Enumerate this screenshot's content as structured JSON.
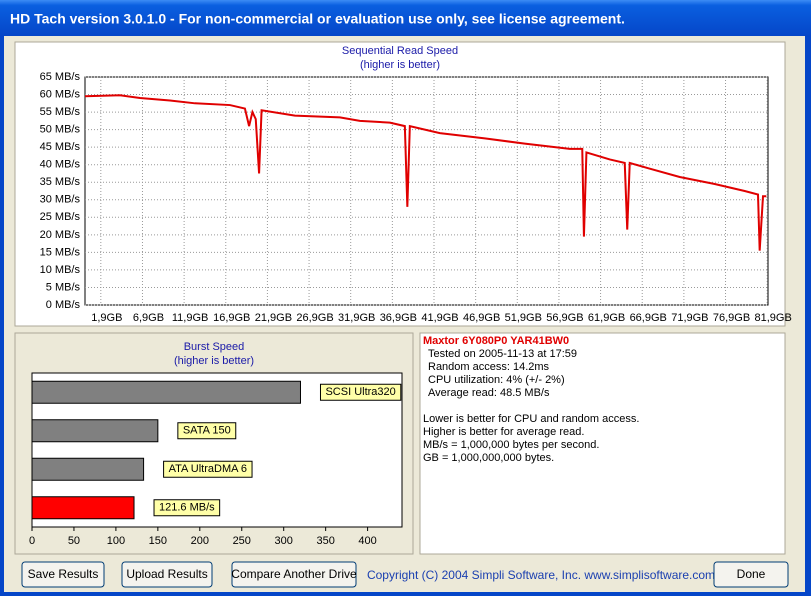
{
  "window": {
    "title": "HD Tach version 3.0.1.0  - For non-commercial or evaluation use only, see license agreement."
  },
  "chart_data": [
    {
      "type": "line",
      "title": "Sequential Read Speed",
      "subtitle": "(higher is better)",
      "color": "#e00000",
      "grid": true,
      "x": [
        0,
        4.2,
        6.6,
        10.2,
        13.2,
        17.4,
        19.2,
        19.7,
        20.1,
        20.5,
        20.9,
        21.2,
        25.2,
        30.6,
        33,
        36.6,
        38.4,
        38.7,
        39,
        42.6,
        48,
        52.8,
        58.2,
        59.7,
        59.9,
        60.2,
        63,
        64.8,
        65.1,
        65.4,
        67.6,
        71.4,
        75.6,
        79.2,
        80.8,
        81,
        81.4,
        81.8
      ],
      "values": [
        59.5,
        59.8,
        59,
        58.3,
        57.5,
        57,
        56,
        51,
        55,
        53,
        37.5,
        55.5,
        54,
        53.5,
        52.5,
        52,
        51,
        28,
        51,
        49,
        47.5,
        46,
        44.5,
        44.5,
        19.5,
        43.5,
        41.5,
        40.5,
        21.5,
        40.5,
        39,
        36.5,
        34.5,
        32.5,
        31.5,
        15.5,
        31,
        31
      ],
      "xlim": [
        0,
        82
      ],
      "xticks": [
        {
          "value": 1.9,
          "label": "1,9GB"
        },
        {
          "value": 6.9,
          "label": "6,9GB"
        },
        {
          "value": 11.9,
          "label": "11,9GB"
        },
        {
          "value": 16.9,
          "label": "16,9GB"
        },
        {
          "value": 21.9,
          "label": "21,9GB"
        },
        {
          "value": 26.9,
          "label": "26,9GB"
        },
        {
          "value": 31.9,
          "label": "31,9GB"
        },
        {
          "value": 36.9,
          "label": "36,9GB"
        },
        {
          "value": 41.9,
          "label": "41,9GB"
        },
        {
          "value": 46.9,
          "label": "46,9GB"
        },
        {
          "value": 51.9,
          "label": "51,9GB"
        },
        {
          "value": 56.9,
          "label": "56,9GB"
        },
        {
          "value": 61.9,
          "label": "61,9GB"
        },
        {
          "value": 66.9,
          "label": "66,9GB"
        },
        {
          "value": 71.9,
          "label": "71,9GB"
        },
        {
          "value": 76.9,
          "label": "76,9GB"
        },
        {
          "value": 81.9,
          "label": "81,9GB"
        }
      ],
      "ylim": [
        0,
        65
      ],
      "yticks": [
        {
          "value": 0,
          "label": "0 MB/s"
        },
        {
          "value": 5,
          "label": "5 MB/s"
        },
        {
          "value": 10,
          "label": "10 MB/s"
        },
        {
          "value": 15,
          "label": "15 MB/s"
        },
        {
          "value": 20,
          "label": "20 MB/s"
        },
        {
          "value": 25,
          "label": "25 MB/s"
        },
        {
          "value": 30,
          "label": "30 MB/s"
        },
        {
          "value": 35,
          "label": "35 MB/s"
        },
        {
          "value": 40,
          "label": "40 MB/s"
        },
        {
          "value": 45,
          "label": "45 MB/s"
        },
        {
          "value": 50,
          "label": "50 MB/s"
        },
        {
          "value": 55,
          "label": "55 MB/s"
        },
        {
          "value": 60,
          "label": "60 MB/s"
        },
        {
          "value": 65,
          "label": "65 MB/s"
        }
      ]
    },
    {
      "type": "bar",
      "orientation": "horizontal",
      "title": "Burst Speed",
      "subtitle": "(higher is better)",
      "categories": [
        "SCSI Ultra320",
        "SATA 150",
        "ATA UltraDMA 6",
        null
      ],
      "values": [
        320,
        150,
        133,
        121.6
      ],
      "value_labels": [
        null,
        null,
        null,
        "121.6 MB/s"
      ],
      "colors": [
        "#808080",
        "#808080",
        "#808080",
        "#ff0000"
      ],
      "xlim": [
        0,
        441
      ],
      "xticks": [
        0,
        50,
        100,
        150,
        200,
        250,
        300,
        350,
        400
      ]
    }
  ],
  "info": {
    "drive": "Maxtor 6Y080P0 YAR41BW0",
    "results": [
      "Tested on 2005-11-13 at 17:59",
      "Random access: 14.2ms",
      "CPU utilization: 4% (+/- 2%)",
      "Average read: 48.5 MB/s"
    ],
    "notes": [
      "Lower is better for CPU and random access.",
      "Higher is better for average read.",
      "MB/s = 1,000,000 bytes per second.",
      "GB = 1,000,000,000 bytes."
    ]
  },
  "buttons": [
    "Save Results",
    "Upload Results",
    "Compare Another Drive",
    "Done"
  ],
  "copyright": "Copyright (C) 2004 Simpli Software, Inc. www.simplisoftware.com"
}
